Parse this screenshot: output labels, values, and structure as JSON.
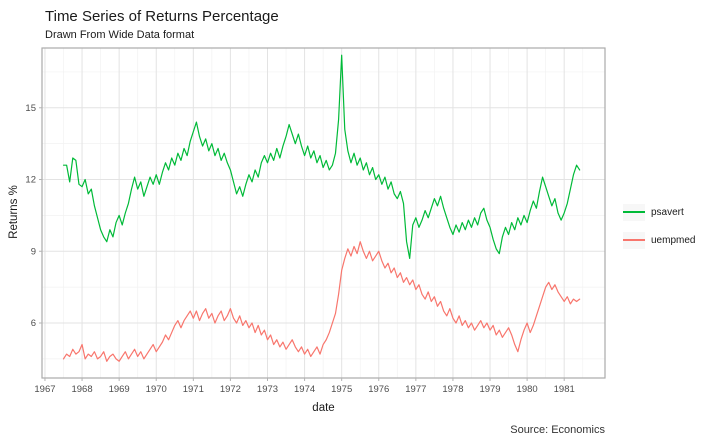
{
  "chart_data": {
    "type": "line",
    "title": "Time Series of Returns Percentage",
    "subtitle": "Drawn From Wide Data format",
    "caption": "Source: Economics",
    "xlabel": "date",
    "ylabel": "Returns %",
    "legend_position": "right",
    "grid": true,
    "x_ticks": [
      1967,
      1968,
      1969,
      1970,
      1971,
      1972,
      1973,
      1974,
      1975,
      1976,
      1977,
      1978,
      1979,
      1980,
      1981
    ],
    "x_minor": [
      1967.5,
      1968.5,
      1969.5,
      1970.5,
      1971.5,
      1972.5,
      1973.5,
      1974.5,
      1975.5,
      1976.5,
      1977.5,
      1978.5,
      1979.5,
      1980.5,
      1981.5
    ],
    "y_ticks": [
      6,
      9,
      12,
      15
    ],
    "y_minor": [
      4.5,
      7.5,
      10.5,
      13.5,
      16.5
    ],
    "xlim": [
      1966.92,
      1982.1
    ],
    "ylim": [
      3.7,
      17.5
    ],
    "start_date": "1967-07",
    "frequency": "monthly",
    "x_start": 1967.5,
    "x_step": 0.0833333,
    "panel_border_color": "#ABABAB",
    "grid_major_color": "#E3E3E3",
    "grid_minor_color": "#F2F2F2",
    "tick_text_color": "#4D4D4D",
    "series": [
      {
        "name": "psavert",
        "color": "#00BA38",
        "values": [
          12.6,
          12.6,
          11.9,
          12.9,
          12.8,
          11.8,
          11.7,
          12.0,
          11.4,
          11.6,
          10.9,
          10.4,
          9.9,
          9.6,
          9.4,
          9.9,
          9.6,
          10.2,
          10.5,
          10.1,
          10.6,
          11.0,
          11.6,
          12.1,
          11.6,
          11.9,
          11.3,
          11.7,
          12.1,
          11.8,
          12.2,
          11.8,
          12.3,
          12.7,
          12.4,
          12.9,
          12.6,
          13.1,
          12.8,
          13.3,
          13.0,
          13.6,
          14.0,
          14.4,
          13.8,
          13.4,
          13.7,
          13.2,
          13.5,
          13.0,
          13.3,
          12.8,
          13.1,
          12.7,
          12.4,
          11.9,
          11.4,
          11.7,
          11.3,
          11.8,
          12.2,
          11.9,
          12.4,
          12.1,
          12.7,
          13.0,
          12.7,
          13.1,
          12.8,
          13.3,
          12.9,
          13.4,
          13.8,
          14.3,
          13.9,
          13.5,
          13.9,
          13.4,
          13.0,
          13.4,
          12.9,
          13.2,
          12.7,
          13.0,
          12.5,
          12.8,
          12.4,
          12.6,
          13.1,
          14.5,
          17.2,
          14.1,
          13.2,
          12.7,
          13.1,
          12.6,
          12.9,
          12.4,
          12.7,
          12.2,
          12.5,
          12.0,
          12.2,
          11.8,
          12.1,
          11.6,
          11.9,
          11.4,
          11.2,
          11.5,
          11.0,
          9.4,
          8.7,
          10.1,
          10.4,
          10.0,
          10.3,
          10.7,
          10.4,
          10.8,
          11.2,
          10.9,
          11.3,
          10.8,
          10.4,
          10.0,
          9.7,
          10.1,
          9.8,
          10.2,
          9.9,
          10.3,
          10.0,
          10.4,
          10.1,
          10.6,
          10.8,
          10.3,
          10.0,
          9.5,
          9.1,
          8.9,
          9.6,
          10.0,
          9.7,
          10.2,
          9.9,
          10.4,
          10.1,
          10.5,
          10.2,
          10.7,
          11.1,
          10.8,
          11.5,
          12.1,
          11.7,
          11.3,
          10.9,
          11.2,
          10.6,
          10.3,
          10.6,
          11.0,
          11.6,
          12.2,
          12.6,
          12.4
        ]
      },
      {
        "name": "uempmed",
        "color": "#F8766D",
        "values": [
          4.5,
          4.7,
          4.6,
          4.9,
          4.7,
          4.8,
          5.1,
          4.5,
          4.7,
          4.6,
          4.8,
          4.5,
          4.6,
          4.8,
          4.4,
          4.6,
          4.7,
          4.5,
          4.4,
          4.6,
          4.8,
          4.5,
          4.7,
          4.9,
          4.6,
          4.8,
          4.5,
          4.7,
          4.9,
          5.1,
          4.8,
          5.0,
          5.2,
          5.5,
          5.3,
          5.6,
          5.9,
          6.1,
          5.8,
          6.1,
          6.3,
          6.5,
          6.2,
          6.5,
          6.1,
          6.4,
          6.6,
          6.2,
          6.4,
          6.0,
          6.3,
          6.5,
          6.1,
          6.3,
          6.6,
          6.2,
          6.0,
          6.3,
          5.9,
          6.1,
          5.8,
          6.0,
          5.6,
          5.9,
          5.5,
          5.7,
          5.3,
          5.5,
          5.1,
          5.3,
          5.0,
          5.2,
          4.9,
          5.1,
          5.3,
          5.0,
          4.8,
          5.0,
          4.7,
          4.9,
          4.6,
          4.8,
          5.0,
          4.7,
          5.1,
          5.3,
          5.6,
          6.0,
          6.4,
          7.2,
          8.2,
          8.7,
          9.1,
          8.8,
          9.2,
          8.9,
          9.4,
          9.0,
          8.7,
          9.0,
          8.6,
          8.8,
          9.0,
          8.6,
          8.3,
          8.5,
          8.1,
          8.3,
          7.9,
          8.1,
          7.7,
          7.9,
          7.6,
          7.8,
          7.4,
          7.6,
          7.2,
          7.0,
          7.3,
          6.9,
          7.1,
          6.7,
          6.9,
          6.5,
          6.3,
          6.6,
          6.2,
          6.0,
          6.3,
          5.9,
          6.1,
          5.8,
          6.0,
          5.7,
          5.9,
          6.1,
          5.8,
          6.0,
          5.7,
          5.9,
          5.5,
          5.7,
          5.4,
          5.6,
          5.8,
          5.5,
          5.1,
          4.8,
          5.3,
          5.7,
          6.0,
          5.6,
          5.9,
          6.3,
          6.7,
          7.1,
          7.5,
          7.7,
          7.4,
          7.6,
          7.3,
          7.1,
          6.9,
          7.1,
          6.8,
          7.0,
          6.9,
          7.0
        ]
      }
    ]
  }
}
